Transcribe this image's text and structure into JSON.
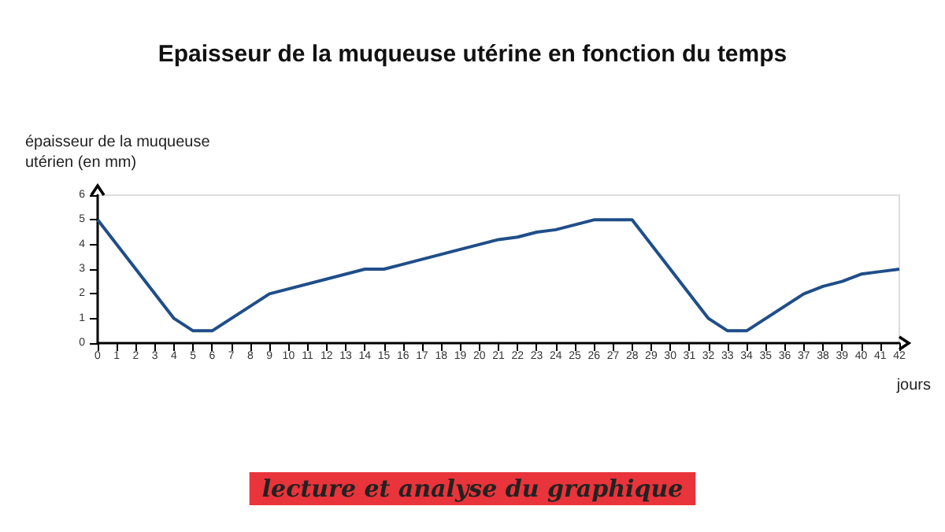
{
  "chart_data": {
    "type": "line",
    "title": "Epaisseur de la muqueuse utérine en fonction du temps",
    "ylabel": "épaisseur de la muqueuse\nutérien (en mm)",
    "xlabel": "jours",
    "annotations": [
      "lecture et analyse du graphique"
    ],
    "x": [
      0,
      4,
      5,
      6,
      9,
      14,
      15,
      19,
      21,
      22,
      23,
      24,
      26,
      27,
      28,
      32,
      33,
      34,
      37,
      38,
      39,
      40,
      41,
      42
    ],
    "series": [
      {
        "color": "#1f4e89",
        "values": [
          5,
          1,
          0.5,
          0.5,
          2,
          3,
          3,
          3.8,
          4.2,
          4.3,
          4.5,
          4.6,
          5,
          5,
          5,
          1,
          0.5,
          0.5,
          2,
          2.3,
          2.5,
          2.8,
          2.9,
          3
        ]
      }
    ],
    "xlim": [
      0,
      42
    ],
    "xticks": [
      0,
      1,
      2,
      3,
      4,
      5,
      6,
      7,
      8,
      9,
      10,
      11,
      12,
      13,
      14,
      15,
      16,
      17,
      18,
      19,
      20,
      21,
      22,
      23,
      24,
      25,
      26,
      27,
      28,
      29,
      30,
      31,
      32,
      33,
      34,
      35,
      36,
      37,
      38,
      39,
      40,
      41,
      42
    ],
    "ylim": [
      0,
      6
    ],
    "yticks": [
      0,
      1,
      2,
      3,
      4,
      5,
      6
    ],
    "grid": false,
    "marker": "none",
    "line_style": "solid"
  }
}
